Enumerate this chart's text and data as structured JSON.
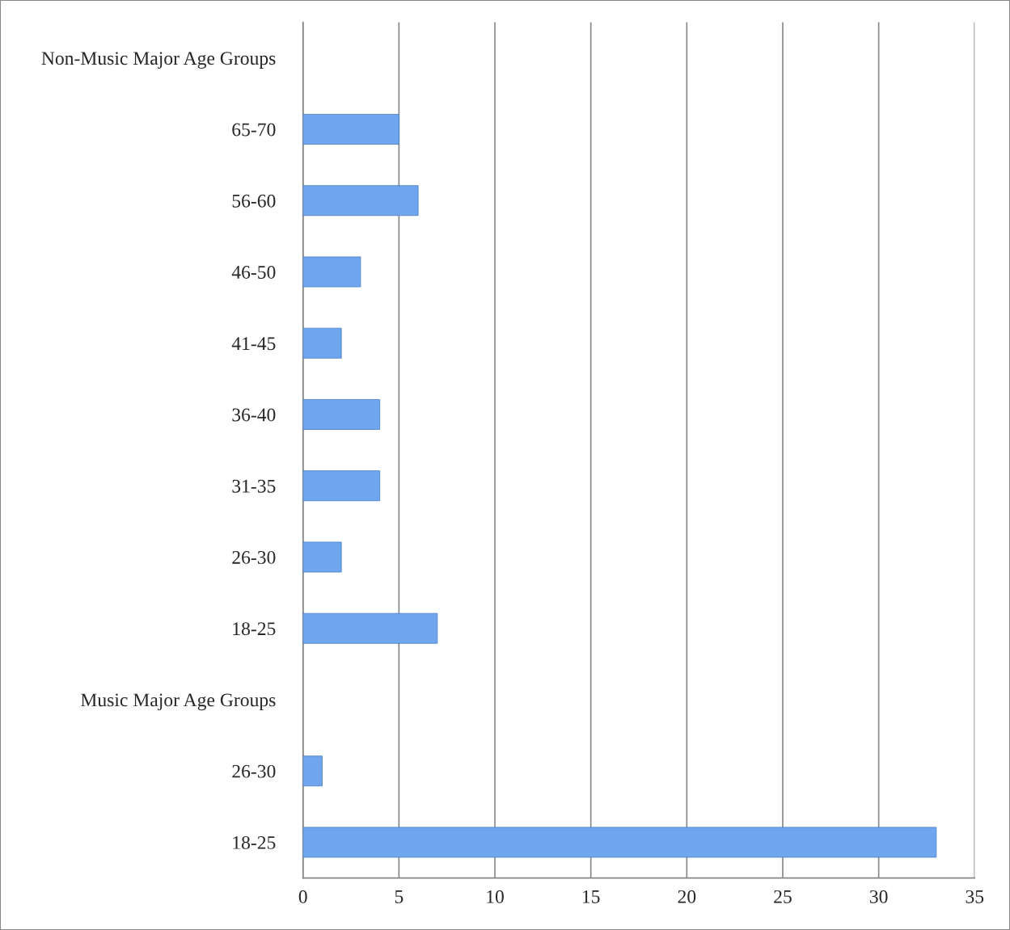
{
  "chart_data": {
    "type": "bar",
    "orientation": "horizontal",
    "categories": [
      "Non-Music Major Age Groups",
      "65-70",
      "56-60",
      "46-50",
      "41-45",
      "36-40",
      "31-35",
      "26-30",
      "18-25",
      "Music Major Age Groups",
      "26-30",
      "18-25"
    ],
    "values": [
      null,
      5,
      6,
      3,
      2,
      4,
      4,
      2,
      7,
      null,
      1,
      33
    ],
    "color": "#6fa6ee",
    "xlim": [
      0,
      35
    ],
    "xticks": [
      0,
      5,
      10,
      15,
      20,
      25,
      30,
      35
    ],
    "grid": "x"
  }
}
